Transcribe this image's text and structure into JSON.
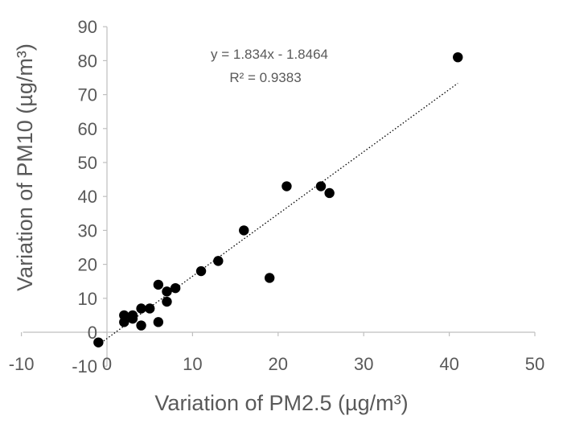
{
  "chart_data": {
    "type": "scatter",
    "xlabel": "Variation of PM2.5 (µg/m³)",
    "ylabel": "Variation of PM10 (µg/m³)",
    "xlim": [
      -10,
      50
    ],
    "ylim": [
      -10,
      90
    ],
    "x_ticks": [
      -10,
      0,
      10,
      20,
      30,
      40,
      50
    ],
    "x_tick_labels": [
      "-10",
      "0",
      "10",
      "20",
      "30",
      "40",
      "50"
    ],
    "y_ticks": [
      -10,
      0,
      10,
      20,
      30,
      40,
      50,
      60,
      70,
      80,
      90
    ],
    "y_tick_labels": [
      "-10",
      "0",
      "10",
      "20",
      "30",
      "40",
      "50",
      "60",
      "70",
      "80",
      "90"
    ],
    "grid": false,
    "legend": "none",
    "marker_color": "#000000",
    "trendline": {
      "type": "linear",
      "slope": 1.834,
      "intercept": -1.8464,
      "style": "dotted",
      "equation_label": "y = 1.834x - 1.8464",
      "r2_label": "R² = 0.9383"
    },
    "series": [
      {
        "points": [
          [
            -1,
            -3
          ],
          [
            2,
            3
          ],
          [
            2,
            5
          ],
          [
            3,
            4
          ],
          [
            3,
            5
          ],
          [
            4,
            2
          ],
          [
            4,
            7
          ],
          [
            5,
            7
          ],
          [
            6,
            3
          ],
          [
            6,
            14
          ],
          [
            7,
            9
          ],
          [
            7,
            12
          ],
          [
            8,
            13
          ],
          [
            11,
            18
          ],
          [
            13,
            21
          ],
          [
            16,
            30
          ],
          [
            19,
            16
          ],
          [
            21,
            43
          ],
          [
            25,
            43
          ],
          [
            26,
            41
          ],
          [
            41,
            81
          ]
        ]
      }
    ]
  }
}
